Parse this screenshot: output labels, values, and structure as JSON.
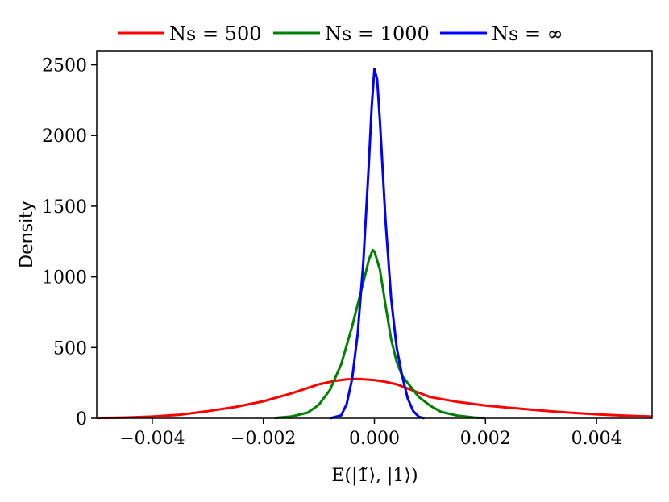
{
  "chart_data": {
    "type": "line",
    "title": "",
    "xlabel": "E(|1̃⟩, |1⟩)",
    "ylabel": "Density",
    "xlim": [
      -0.005,
      0.005
    ],
    "ylim": [
      0,
      2600
    ],
    "x_ticks": [
      -0.004,
      -0.002,
      0.0,
      0.002,
      0.004
    ],
    "x_tick_labels": [
      "−0.004",
      "−0.002",
      "0.000",
      "0.002",
      "0.004"
    ],
    "y_ticks": [
      0,
      500,
      1000,
      1500,
      2000,
      2500
    ],
    "y_tick_labels": [
      "0",
      "500",
      "1000",
      "1500",
      "2000",
      "2500"
    ],
    "grid": false,
    "legend_position": "top-outside",
    "series": [
      {
        "name": "Ns = 500",
        "color": "#ff0000",
        "x": [
          -0.005,
          -0.0045,
          -0.004,
          -0.0035,
          -0.003,
          -0.0025,
          -0.002,
          -0.0015,
          -0.001,
          -0.0007,
          -0.0005,
          -0.0003,
          0.0,
          0.0002,
          0.0004,
          0.0006,
          0.0008,
          0.001,
          0.0015,
          0.002,
          0.0025,
          0.003,
          0.0035,
          0.004,
          0.0045,
          0.005
        ],
        "y": [
          2,
          5,
          12,
          25,
          50,
          80,
          120,
          175,
          240,
          265,
          275,
          278,
          270,
          258,
          240,
          210,
          180,
          150,
          115,
          90,
          72,
          55,
          40,
          28,
          18,
          12
        ]
      },
      {
        "name": "Ns = 1000",
        "color": "#008000",
        "x": [
          -0.0018,
          -0.0015,
          -0.0012,
          -0.001,
          -0.0008,
          -0.0006,
          -0.0004,
          -0.0002,
          -0.0001,
          -3e-05,
          0.0,
          0.0001,
          0.0002,
          0.0003,
          0.0004,
          0.0005,
          0.0006,
          0.0008,
          0.001,
          0.0012,
          0.0015,
          0.0018,
          0.002
        ],
        "y": [
          2,
          12,
          40,
          95,
          200,
          380,
          650,
          960,
          1120,
          1190,
          1180,
          1050,
          800,
          560,
          400,
          300,
          250,
          150,
          90,
          45,
          18,
          5,
          1
        ]
      },
      {
        "name": "Ns = ∞",
        "color": "#0000ff",
        "x": [
          -0.0008,
          -0.0006,
          -0.0005,
          -0.0004,
          -0.0003,
          -0.0002,
          -0.0001,
          -5e-05,
          0.0,
          5e-05,
          0.0001,
          0.0002,
          0.0003,
          0.0004,
          0.0005,
          0.0006,
          0.0007,
          0.0008,
          0.0009
        ],
        "y": [
          0,
          20,
          100,
          280,
          600,
          1100,
          1800,
          2200,
          2470,
          2400,
          2100,
          1400,
          850,
          500,
          300,
          140,
          50,
          10,
          0
        ]
      }
    ]
  }
}
